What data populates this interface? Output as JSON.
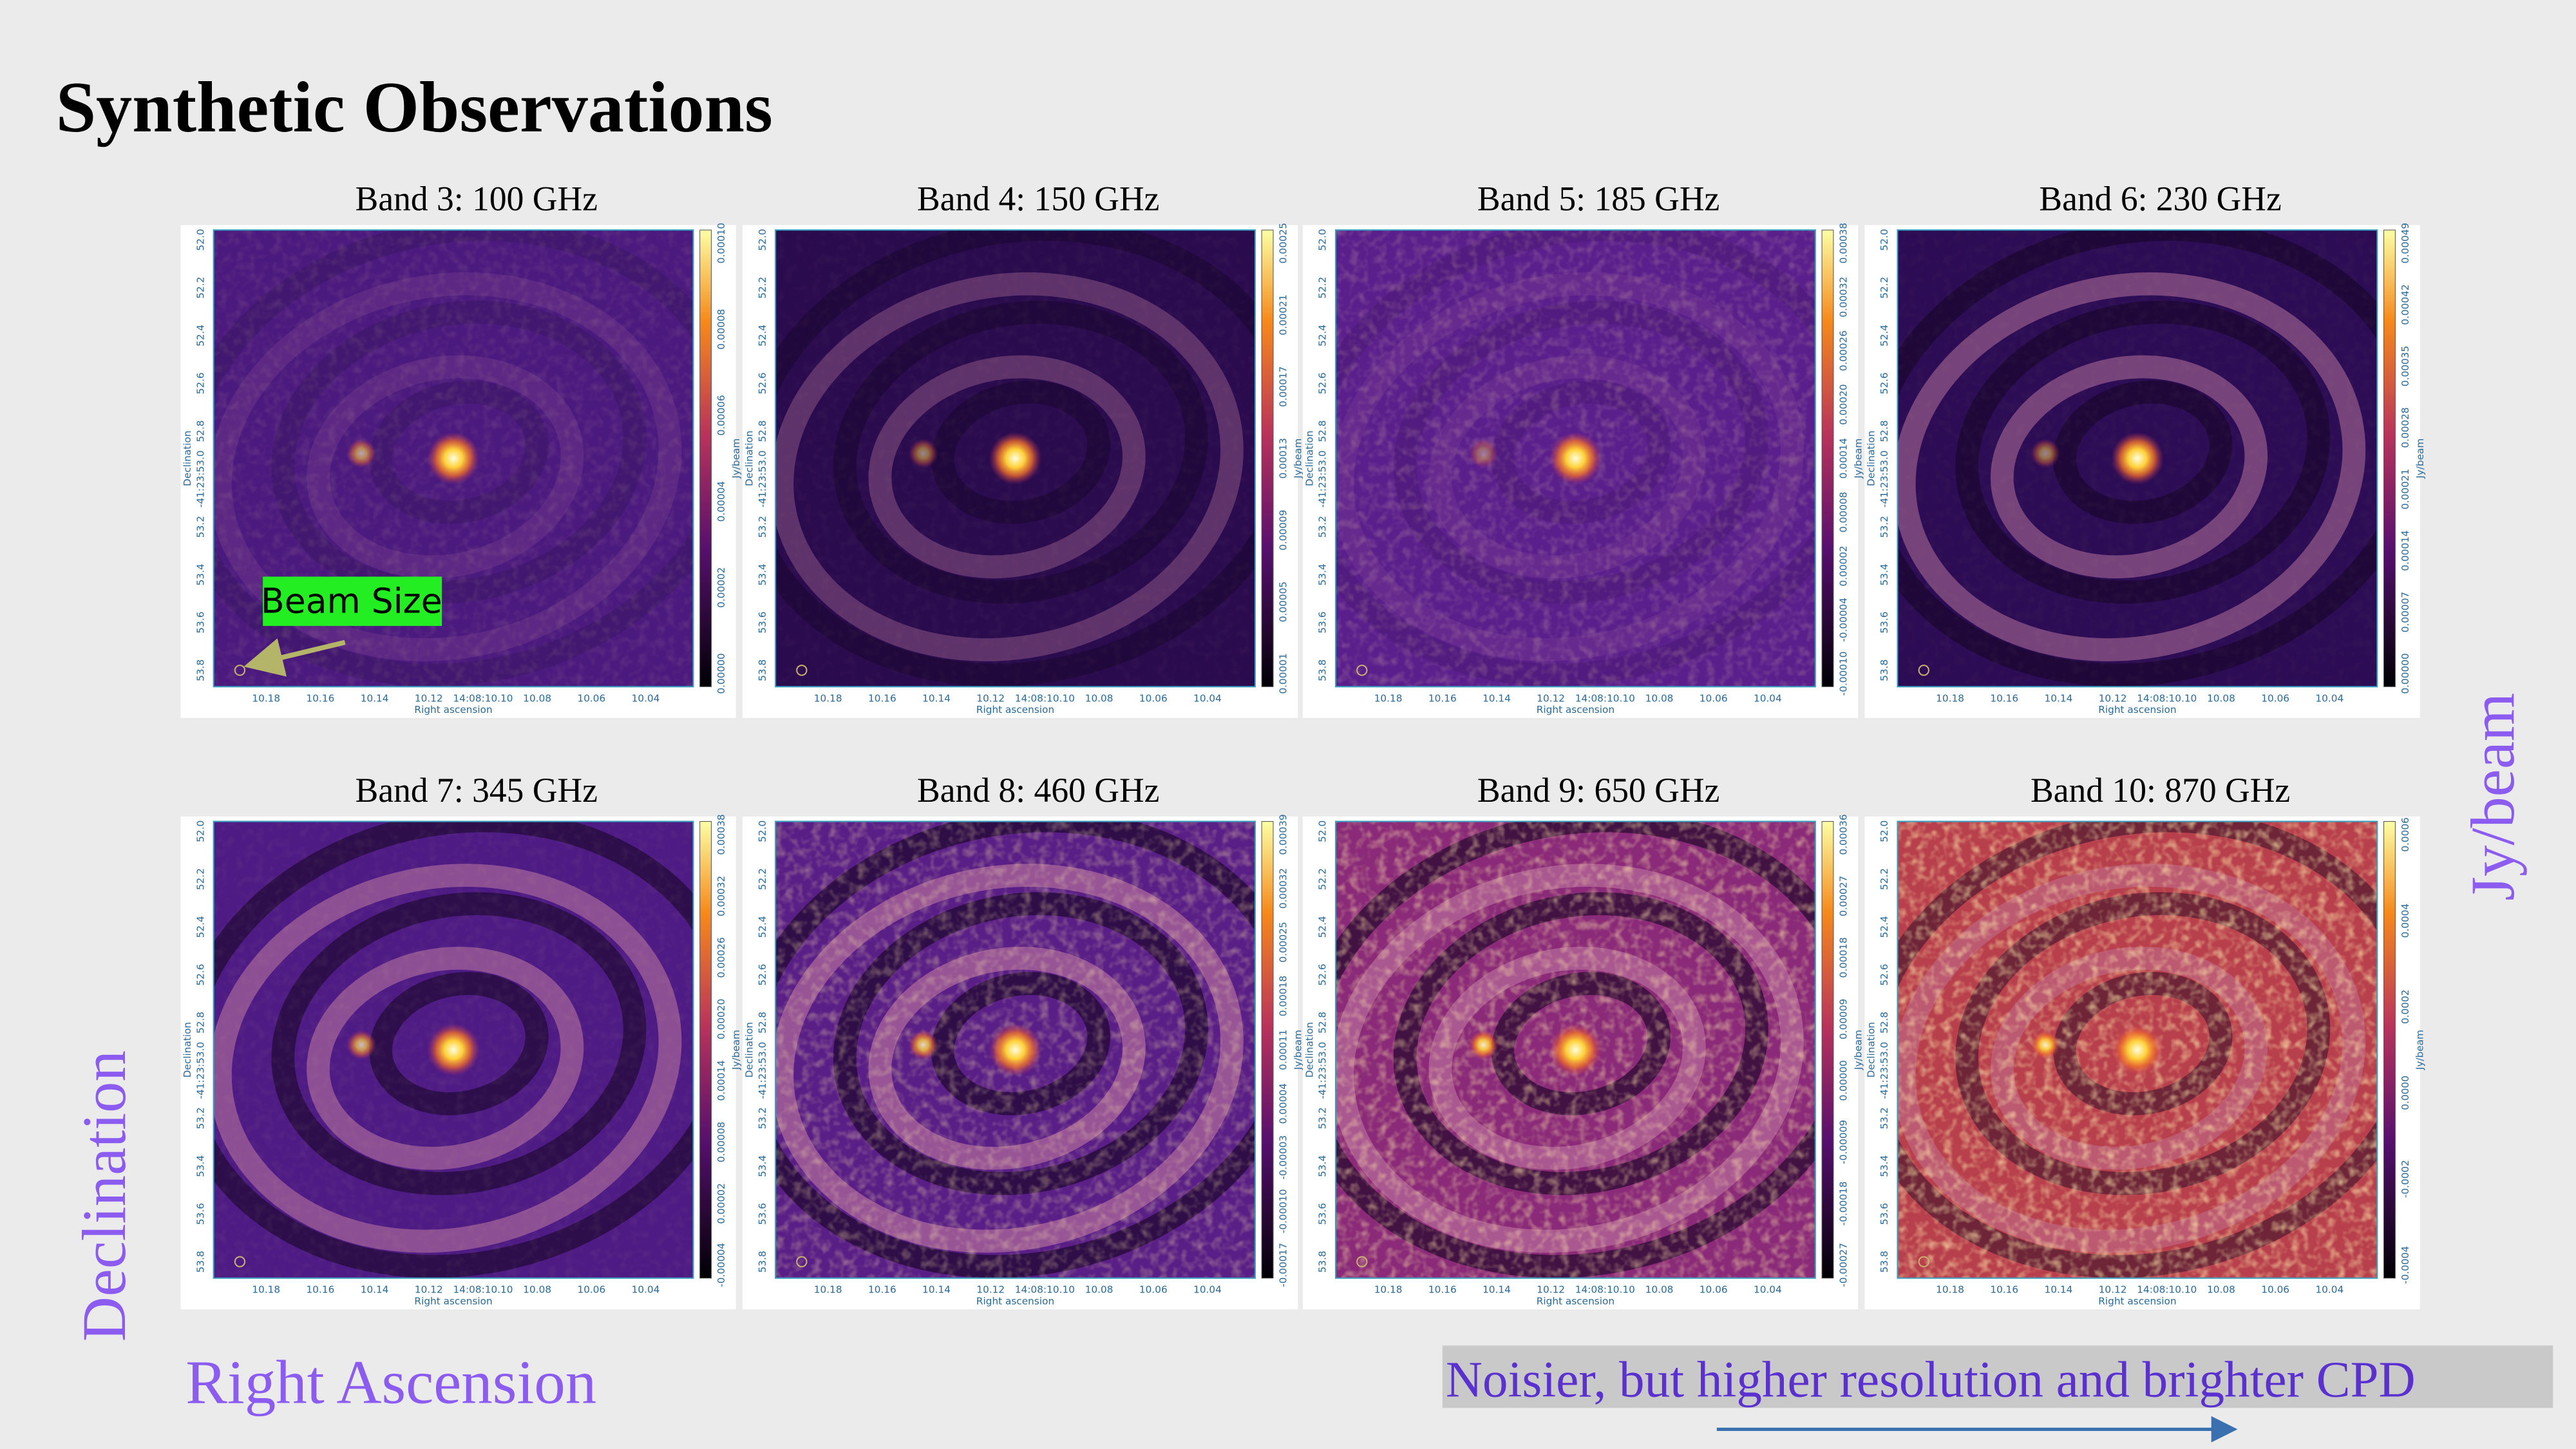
{
  "title": "Synthetic Observations",
  "panels": [
    {
      "label": "Band 3: 100 GHz",
      "colorbar_ticks": [
        "0.00000",
        "0.00002",
        "0.00004",
        "0.00006",
        "0.00008",
        "0.00010"
      ]
    },
    {
      "label": "Band 4: 150 GHz",
      "colorbar_ticks": [
        "0.00001",
        "0.00005",
        "0.00009",
        "0.00013",
        "0.00017",
        "0.00021",
        "0.00025"
      ]
    },
    {
      "label": "Band 5: 185 GHz",
      "colorbar_ticks": [
        "-0.00010",
        "-0.00004",
        "0.00002",
        "0.00008",
        "0.00014",
        "0.00020",
        "0.00026",
        "0.00032",
        "0.00038"
      ]
    },
    {
      "label": "Band 6: 230 GHz",
      "colorbar_ticks": [
        "0.00000",
        "0.00007",
        "0.00014",
        "0.00021",
        "0.00028",
        "0.00035",
        "0.00042",
        "0.00049"
      ]
    },
    {
      "label": "Band 7: 345 GHz",
      "colorbar_ticks": [
        "-0.00004",
        "0.00002",
        "0.00008",
        "0.00014",
        "0.00020",
        "0.00026",
        "0.00032",
        "0.00038"
      ]
    },
    {
      "label": "Band 8: 460 GHz",
      "colorbar_ticks": [
        "-0.00017",
        "-0.00010",
        "-0.00003",
        "0.00004",
        "0.00011",
        "0.00018",
        "0.00025",
        "0.00032",
        "0.00039"
      ]
    },
    {
      "label": "Band 9: 650 GHz",
      "colorbar_ticks": [
        "-0.00027",
        "-0.00018",
        "-0.00009",
        "0.00000",
        "0.00009",
        "0.00018",
        "0.00027",
        "0.00036"
      ]
    },
    {
      "label": "Band 10: 870 GHz",
      "colorbar_ticks": [
        "-0.0004",
        "-0.0002",
        "0.0000",
        "0.0002",
        "0.0004",
        "0.0006"
      ]
    }
  ],
  "axes": {
    "ra_ticks": [
      "10.18",
      "10.16",
      "10.14",
      "10.12",
      "14:08:10.10",
      "10.08",
      "10.06",
      "10.04"
    ],
    "dec_ticks": [
      "52.0",
      "52.2",
      "52.4",
      "52.6",
      "52.8",
      "-41:23:53.0",
      "53.2",
      "53.4",
      "53.6",
      "53.8"
    ],
    "ra_label": "Right ascension",
    "dec_label": "Declination",
    "unit": "Jy/beam"
  },
  "annotations": {
    "beam": "Beam Size",
    "x_label": "Right Ascension",
    "y_label": "Declination",
    "unit_label": "Jy/beam",
    "note": "Noisier, but higher resolution and brighter CPD"
  }
}
